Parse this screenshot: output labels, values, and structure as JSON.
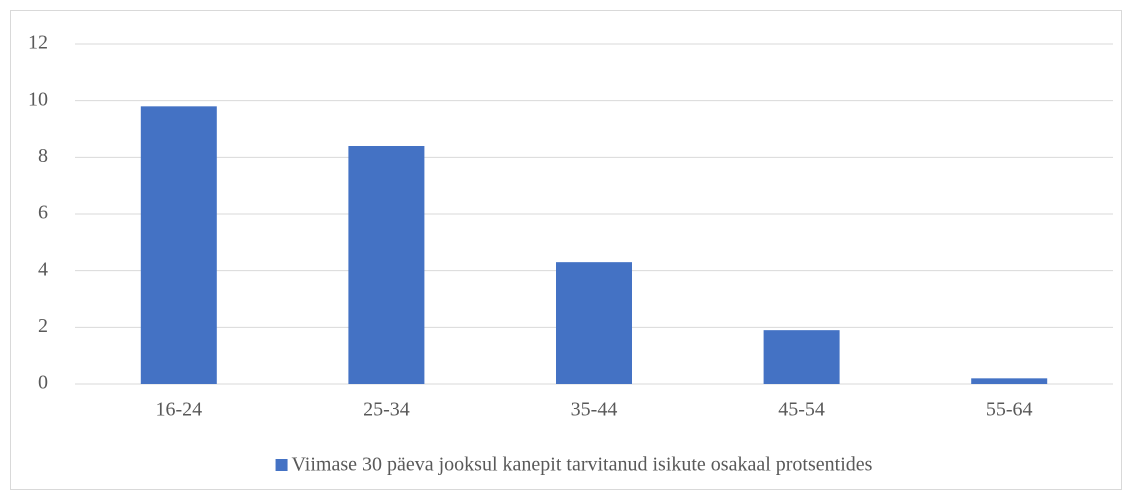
{
  "chart_data": {
    "type": "bar",
    "categories": [
      "16-24",
      "25-34",
      "35-44",
      "45-54",
      "55-64"
    ],
    "series": [
      {
        "name": "Viimase 30 päeva jooksul kanepit tarvitanud isikute osakaal protsentides",
        "color": "#4472c4",
        "values": [
          9.8,
          8.4,
          4.3,
          1.9,
          0.2
        ]
      }
    ],
    "ylim": [
      0,
      12
    ],
    "yticks": [
      0,
      2,
      4,
      6,
      8,
      10,
      12
    ],
    "grid": true,
    "legend": "bottom"
  }
}
